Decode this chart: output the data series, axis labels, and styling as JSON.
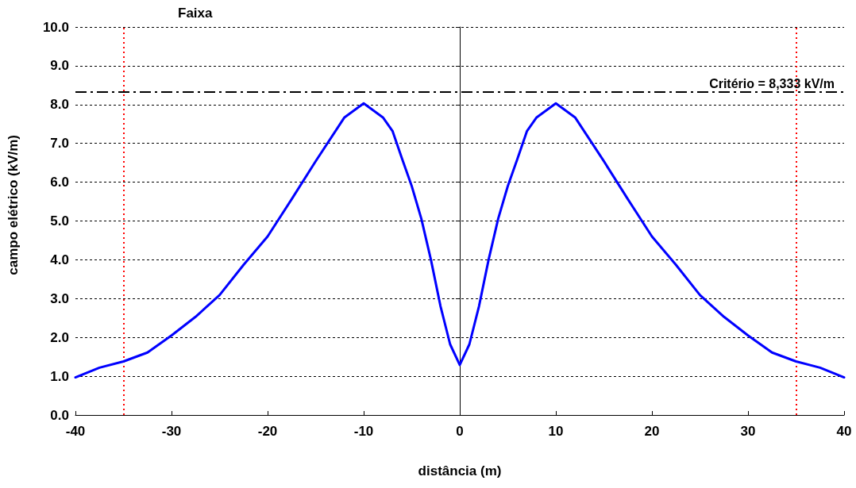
{
  "chart_data": {
    "type": "line",
    "xlabel": "distância (m)",
    "ylabel": "campo elétrico (kV/m)",
    "x": [
      -40,
      -37.5,
      -35,
      -32.5,
      -30,
      -27.5,
      -25,
      -22.5,
      -20,
      -17.5,
      -15,
      -12,
      -10,
      -8,
      -7,
      -6,
      -5,
      -4,
      -3,
      -2,
      -1,
      0,
      1,
      2,
      3,
      4,
      5,
      6,
      7,
      8,
      10,
      12,
      15,
      17.5,
      20,
      22.5,
      25,
      27.5,
      30,
      32.5,
      35,
      37.5,
      40
    ],
    "series": [
      {
        "color": "#0000ff",
        "values": [
          0.97,
          1.22,
          1.38,
          1.61,
          2.05,
          2.53,
          3.09,
          3.87,
          4.6,
          5.56,
          6.54,
          7.67,
          8.03,
          7.67,
          7.32,
          6.6,
          5.9,
          5.06,
          4.0,
          2.8,
          1.82,
          1.29,
          1.82,
          2.8,
          4.0,
          5.06,
          5.9,
          6.6,
          7.32,
          7.67,
          8.03,
          7.67,
          6.54,
          5.56,
          4.6,
          3.87,
          3.09,
          2.53,
          2.05,
          1.61,
          1.38,
          1.22,
          0.97
        ]
      }
    ],
    "xlim": [
      -40,
      40
    ],
    "xticks": [
      -40,
      -30,
      -20,
      -10,
      0,
      10,
      20,
      30,
      40
    ],
    "ylim": [
      0,
      10
    ],
    "yticks": [
      {
        "value": 0,
        "label": "0.0"
      },
      {
        "value": 1,
        "label": "1.0"
      },
      {
        "value": 2,
        "label": "2.0"
      },
      {
        "value": 3,
        "label": "3.0"
      },
      {
        "value": 4,
        "label": "4.0"
      },
      {
        "value": 5,
        "label": "5.0"
      },
      {
        "value": 6,
        "label": "6.0"
      },
      {
        "value": 7,
        "label": "7.0"
      },
      {
        "value": 8,
        "label": "8.0"
      },
      {
        "value": 9,
        "label": "9.0"
      },
      {
        "value": 10,
        "label": "10.0"
      }
    ],
    "ref_lines": [
      {
        "axis": "y",
        "value": 8.333,
        "label": "Critério = 8,333 kV/m",
        "color": "#000000",
        "line_style": "dashdot"
      },
      {
        "axis": "x",
        "value": -35,
        "color": "#ff0000",
        "line_style": "dotted"
      },
      {
        "axis": "x",
        "value": 35,
        "color": "#ff0000",
        "line_style": "dotted"
      }
    ],
    "annotations": [
      "Faixa"
    ],
    "grid": "y",
    "marker": "none",
    "line_style": "solid"
  }
}
